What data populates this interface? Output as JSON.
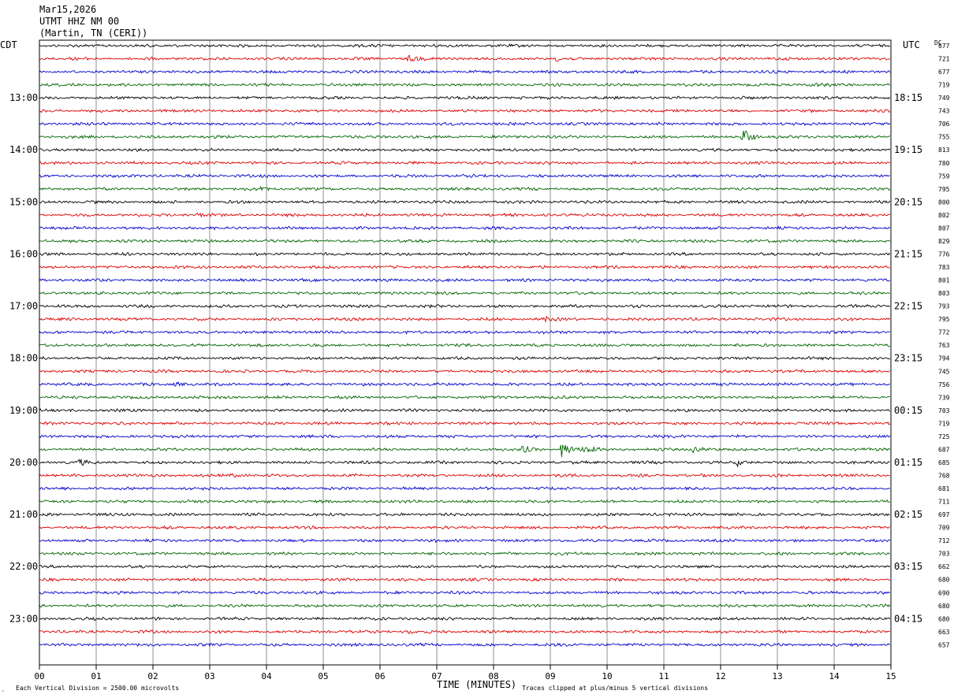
{
  "header": {
    "date": "Mar15,2026",
    "station": "UTMT HHZ NM 00",
    "location": "(Martin, TN (CERI))"
  },
  "chart_data": {
    "type": "line",
    "title": "UTMT HHZ NM 00",
    "left_tz_label": "CDT",
    "right_tz_label": "UTC",
    "dc_label": "DC",
    "xlabel": "TIME (MINUTES)",
    "x_ticks": [
      "00",
      "01",
      "02",
      "03",
      "04",
      "05",
      "06",
      "07",
      "08",
      "09",
      "10",
      "11",
      "12",
      "13",
      "14",
      "15"
    ],
    "xlim": [
      0,
      15
    ],
    "left_hour_labels": [
      "13:00",
      "14:00",
      "15:00",
      "16:00",
      "17:00",
      "18:00",
      "19:00",
      "20:00",
      "21:00",
      "22:00",
      "23:00"
    ],
    "right_hour_labels": [
      "18:15",
      "19:15",
      "20:15",
      "21:15",
      "22:15",
      "23:15",
      "00:15",
      "01:15",
      "02:15",
      "03:15",
      "04:15"
    ],
    "trace_colors": [
      "#000000",
      "#dd0000",
      "#0000cc",
      "#006600"
    ],
    "dc_offsets": [
      677,
      721,
      677,
      719,
      749,
      743,
      706,
      755,
      813,
      780,
      759,
      795,
      800,
      802,
      807,
      829,
      776,
      783,
      801,
      803,
      793,
      795,
      772,
      763,
      794,
      745,
      756,
      739,
      703,
      719,
      725,
      687,
      685,
      768,
      681,
      711,
      697,
      709,
      712,
      703,
      662,
      680,
      690,
      680,
      680,
      663,
      657
    ],
    "events": [
      {
        "row": 1,
        "minute": 6.5,
        "amp": 2.4
      },
      {
        "row": 1,
        "minute": 9.1,
        "amp": 1.6
      },
      {
        "row": 3,
        "minute": 13.6,
        "amp": 1.2
      },
      {
        "row": 7,
        "minute": 12.4,
        "amp": 6.5
      },
      {
        "row": 11,
        "minute": 3.9,
        "amp": 1.4
      },
      {
        "row": 13,
        "minute": 2.8,
        "amp": 1.5
      },
      {
        "row": 21,
        "minute": 8.9,
        "amp": 1.4
      },
      {
        "row": 26,
        "minute": 2.4,
        "amp": 1.5
      },
      {
        "row": 31,
        "minute": 8.5,
        "amp": 2.5
      },
      {
        "row": 31,
        "minute": 9.2,
        "amp": 6.5
      },
      {
        "row": 31,
        "minute": 9.6,
        "amp": 3.5
      },
      {
        "row": 31,
        "minute": 11.5,
        "amp": 4.0
      },
      {
        "row": 32,
        "minute": 0.7,
        "amp": 2.0
      },
      {
        "row": 32,
        "minute": 12.3,
        "amp": 2.4
      },
      {
        "row": 33,
        "minute": 3.4,
        "amp": 1.8
      },
      {
        "row": 45,
        "minute": 6.5,
        "amp": 1.2
      }
    ],
    "footer_left": "Each Vertical Division = 2500.00 microvolts",
    "footer_right": "Traces clipped at plus/minus 5 vertical divisions"
  }
}
